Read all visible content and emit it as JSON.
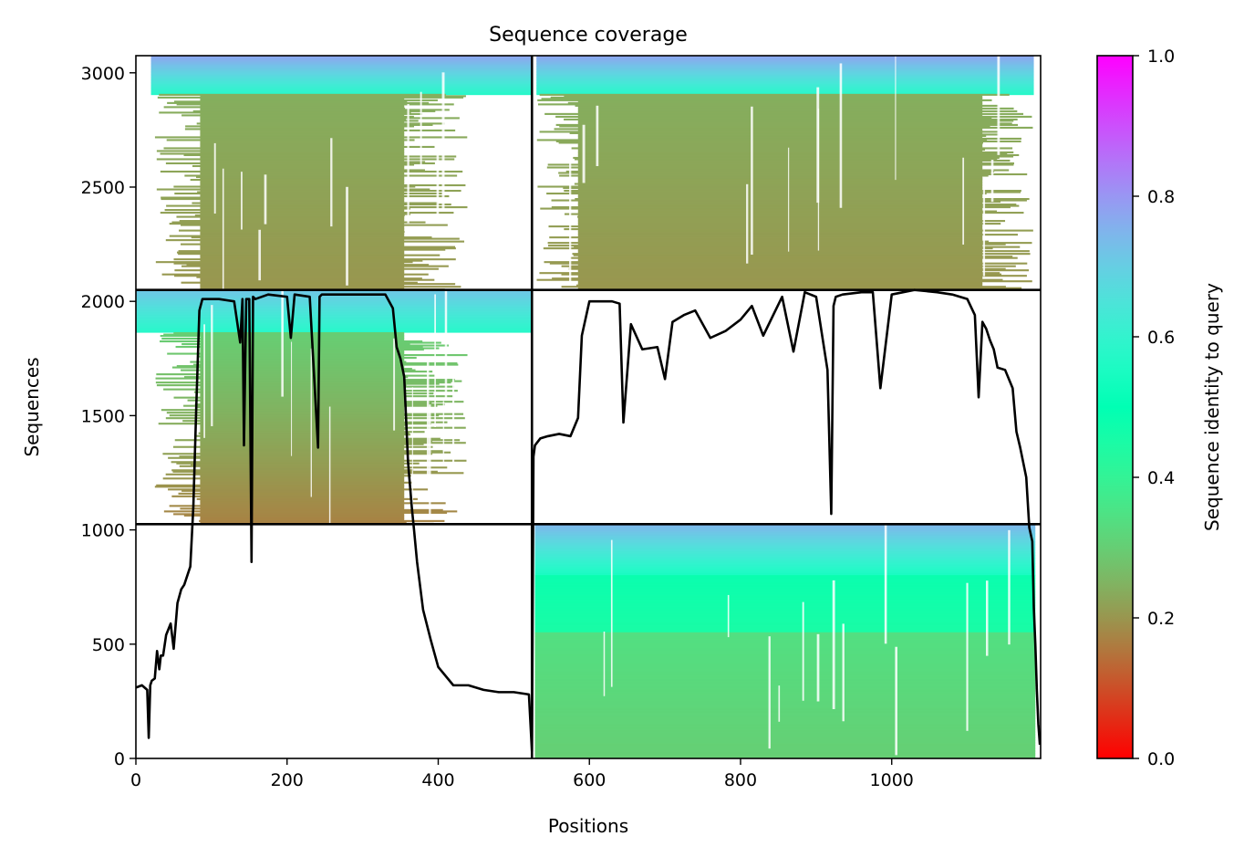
{
  "chart_data": {
    "type": "heatmap",
    "title": "Sequence coverage",
    "xlabel": "Positions",
    "ylabel": "Sequences",
    "xlim": [
      0,
      1197
    ],
    "ylim": [
      0,
      3075
    ],
    "xticks": [
      0,
      200,
      400,
      600,
      800,
      1000
    ],
    "yticks": [
      0,
      500,
      1000,
      1500,
      2000,
      2500,
      3000
    ],
    "grid": false,
    "colorbar": {
      "label": "Sequence identity to query",
      "colormap": "rainbow_r",
      "range": [
        0,
        1
      ],
      "ticks": [
        0.0,
        0.2,
        0.4,
        0.6,
        0.8,
        1.0
      ]
    },
    "chain_breaks_x": [
      524
    ],
    "chain_breaks_y": [
      1025,
      2050
    ],
    "blocks": [
      {
        "rows": [
          2050,
          3075
        ],
        "cols": [
          0,
          524
        ],
        "bands": [
          {
            "rows": [
              2905,
              3075
            ],
            "identity_top": 0.78,
            "identity_bottom": 0.58,
            "x_start": 20,
            "x_end": 524
          },
          {
            "rows": [
              2050,
              2905
            ],
            "identity_top": 0.24,
            "identity_bottom": 0.2,
            "x_start": 85,
            "x_end": 355,
            "tail_left": 25,
            "tail_right": 440
          }
        ]
      },
      {
        "rows": [
          2050,
          3075
        ],
        "cols": [
          524,
          1197
        ],
        "bands": [
          {
            "rows": [
              2905,
              3075
            ],
            "identity_top": 0.78,
            "identity_bottom": 0.58,
            "x_start": 530,
            "x_end": 1188
          },
          {
            "rows": [
              2050,
              2905
            ],
            "identity_top": 0.24,
            "identity_bottom": 0.2,
            "x_start": 585,
            "x_end": 1120,
            "tail_left": 530,
            "tail_right": 1190
          }
        ]
      },
      {
        "rows": [
          1025,
          2050
        ],
        "cols": [
          0,
          524
        ],
        "bands": [
          {
            "rows": [
              1865,
              2050
            ],
            "identity_top": 0.72,
            "identity_bottom": 0.58,
            "x_start": 0,
            "x_end": 524
          },
          {
            "rows": [
              1025,
              1865
            ],
            "identity_top": 0.3,
            "identity_bottom": 0.17,
            "x_start": 85,
            "x_end": 355,
            "tail_left": 25,
            "tail_right": 440
          }
        ]
      },
      {
        "rows": [
          0,
          1025
        ],
        "cols": [
          524,
          1197
        ],
        "bands": [
          {
            "rows": [
              800,
              1025
            ],
            "identity_top": 0.75,
            "identity_bottom": 0.55,
            "x_start": 528,
            "x_end": 1190
          },
          {
            "rows": [
              550,
              800
            ],
            "identity_top": 0.48,
            "identity_bottom": 0.45,
            "x_start": 528,
            "x_end": 1190
          },
          {
            "rows": [
              0,
              550
            ],
            "identity_top": 0.34,
            "identity_bottom": 0.3,
            "x_start": 528,
            "x_end": 1190
          }
        ]
      }
    ],
    "coverage_line": {
      "name": "coverage",
      "x": [
        0,
        8,
        15,
        17,
        19,
        21,
        25,
        28,
        31,
        33,
        36,
        40,
        46,
        50,
        52,
        55,
        60,
        64,
        68,
        72,
        76,
        80,
        84,
        88,
        95,
        110,
        130,
        138,
        141,
        143,
        146,
        150,
        153,
        155,
        158,
        175,
        200,
        205,
        210,
        230,
        241,
        243,
        246,
        270,
        300,
        330,
        340,
        345,
        350,
        355,
        360,
        365,
        368,
        372,
        380,
        390,
        400,
        420,
        440,
        460,
        480,
        500,
        520,
        524,
        526,
        528,
        535,
        545,
        560,
        575,
        585,
        590,
        600,
        630,
        640,
        645,
        655,
        670,
        690,
        700,
        710,
        725,
        740,
        760,
        780,
        800,
        815,
        830,
        855,
        870,
        885,
        900,
        915,
        920,
        923,
        926,
        935,
        960,
        975,
        985,
        1000,
        1030,
        1060,
        1080,
        1100,
        1110,
        1115,
        1120,
        1125,
        1130,
        1135,
        1140,
        1150,
        1160,
        1165,
        1170,
        1178,
        1182,
        1186,
        1188,
        1190,
        1192,
        1194,
        1196
      ],
      "y": [
        310,
        320,
        300,
        90,
        320,
        340,
        350,
        470,
        390,
        450,
        450,
        540,
        590,
        480,
        560,
        680,
        740,
        760,
        800,
        840,
        1100,
        1550,
        1960,
        2010,
        2010,
        2010,
        2000,
        1820,
        2010,
        1370,
        2010,
        2010,
        860,
        2020,
        2010,
        2030,
        2020,
        1840,
        2030,
        2020,
        1360,
        2020,
        2030,
        2030,
        2030,
        2030,
        1970,
        1800,
        1750,
        1670,
        1300,
        1100,
        1000,
        860,
        650,
        520,
        400,
        320,
        320,
        300,
        290,
        290,
        280,
        30,
        1320,
        1370,
        1400,
        1410,
        1420,
        1410,
        1490,
        1850,
        2000,
        2000,
        1990,
        1470,
        1900,
        1790,
        1800,
        1660,
        1910,
        1940,
        1960,
        1840,
        1870,
        1920,
        1980,
        1850,
        2020,
        1780,
        2040,
        2020,
        1700,
        1070,
        1980,
        2020,
        2030,
        2040,
        2040,
        1620,
        2030,
        2050,
        2040,
        2030,
        2010,
        1940,
        1580,
        1910,
        1880,
        1830,
        1790,
        1710,
        1700,
        1620,
        1430,
        1360,
        1230,
        1010,
        950,
        660,
        500,
        300,
        150,
        60
      ]
    }
  }
}
